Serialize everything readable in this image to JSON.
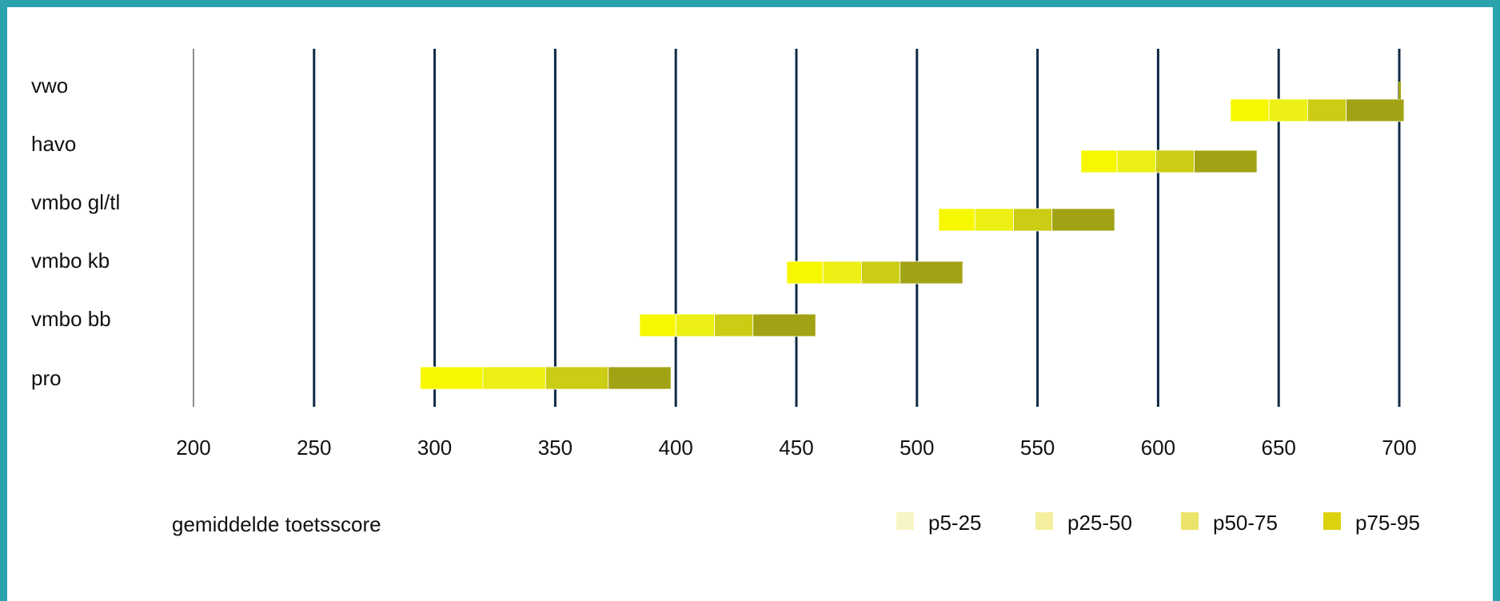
{
  "chart_data": {
    "type": "bar",
    "subtype": "stacked-horizontal-range",
    "categories": [
      "vwo",
      "havo",
      "vmbo gl/tl",
      "vmbo kb",
      "vmbo bb",
      "pro"
    ],
    "xlabel": "gemiddelde toetsscore",
    "xlim": [
      200,
      700
    ],
    "xticks": [
      200,
      250,
      300,
      350,
      400,
      450,
      500,
      550,
      600,
      650,
      700
    ],
    "grid": true,
    "legend_position": "bottom-right",
    "series": [
      {
        "name": "p5-25",
        "color": "#f7f700",
        "ranges": [
          [
            630,
            646
          ],
          [
            568,
            583
          ],
          [
            509,
            524
          ],
          [
            446,
            461
          ],
          [
            385,
            400
          ],
          [
            294,
            320
          ]
        ]
      },
      {
        "name": "p25-50",
        "color": "#ecf014",
        "ranges": [
          [
            646,
            662
          ],
          [
            583,
            599
          ],
          [
            524,
            540
          ],
          [
            461,
            477
          ],
          [
            400,
            416
          ],
          [
            320,
            346
          ]
        ]
      },
      {
        "name": "p50-75",
        "color": "#cbcc14",
        "ranges": [
          [
            662,
            678
          ],
          [
            599,
            615
          ],
          [
            540,
            556
          ],
          [
            477,
            493
          ],
          [
            416,
            432
          ],
          [
            346,
            372
          ]
        ]
      },
      {
        "name": "p75-95",
        "color": "#a2a314",
        "ranges": [
          [
            678,
            702
          ],
          [
            615,
            641
          ],
          [
            556,
            582
          ],
          [
            493,
            519
          ],
          [
            432,
            458
          ],
          [
            372,
            398
          ]
        ]
      }
    ],
    "legend_swatches": [
      "#f7f5c5",
      "#f3ef9f",
      "#ece46a",
      "#dcd20e"
    ]
  }
}
